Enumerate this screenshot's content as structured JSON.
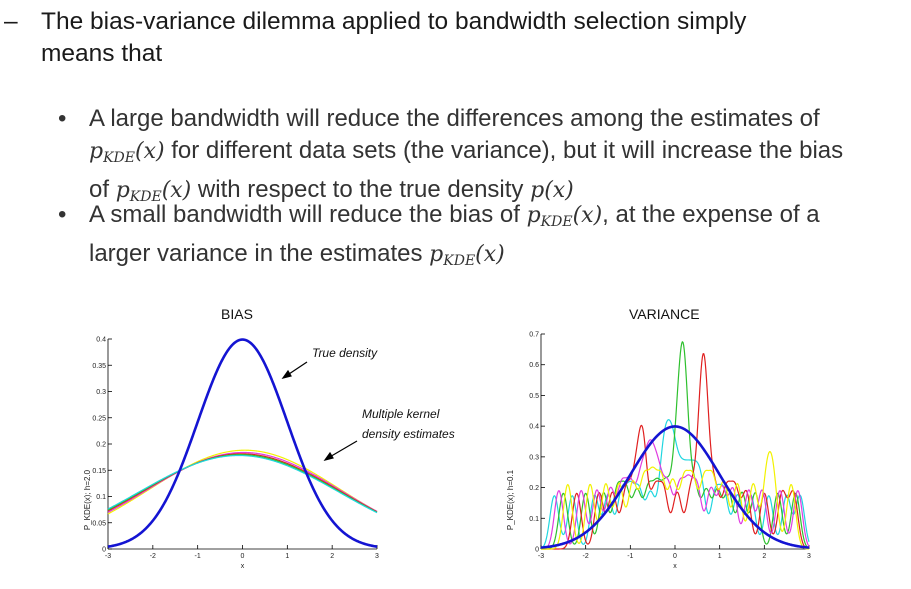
{
  "bullets": {
    "main": {
      "dash": "–",
      "line1": "The bias-variance dilemma applied to bandwidth selection simply",
      "line2": "means that"
    },
    "sub": [
      {
        "bullet": "•",
        "t1": "A large bandwidth will reduce the differences among the estimates of",
        "m1": "p",
        "m1sub": "KDE",
        "m1arg": "(x)",
        "t2": " for different data sets (the variance), but it will increase the bias",
        "t3": "of ",
        "m2": "p",
        "m2sub": "KDE",
        "m2arg": "(x)",
        "t4": " with respect to the true density ",
        "m3": "p(x)"
      },
      {
        "bullet": "•",
        "t1": "A small bandwidth will reduce the bias of ",
        "m1": "p",
        "m1sub": "KDE",
        "m1arg": "(x)",
        "t2": ", at the expense of a",
        "t3": "larger variance in the estimates ",
        "m2": "p",
        "m2sub": "KDE",
        "m2arg": "(x)"
      }
    ]
  },
  "chart_data": [
    {
      "type": "line",
      "title": "BIAS",
      "xlabel": "x",
      "ylabel": "P_KDE(x); h=2.0",
      "xlim": [
        -3,
        3
      ],
      "ylim": [
        0,
        0.4
      ],
      "xticks": [
        "-3",
        "-2",
        "-1",
        "0",
        "1",
        "2",
        "3"
      ],
      "yticks": [
        "0",
        "0.05",
        "0.1",
        "0.15",
        "0.2",
        "0.25",
        "0.3",
        "0.35",
        "0.4"
      ],
      "annotations": [
        "True density",
        "Multiple kernel",
        "density estimates"
      ],
      "series": [
        {
          "name": "true density",
          "color": "#1414d2",
          "model": "normal",
          "mean": 0,
          "sd": 1
        },
        {
          "name": "kde-yellow",
          "color": "#f2f200",
          "model": "normal",
          "mean": 0.05,
          "sd": 2.12
        },
        {
          "name": "kde-magenta",
          "color": "#e03ce0",
          "model": "normal",
          "mean": 0.02,
          "sd": 2.17
        },
        {
          "name": "kde-red",
          "color": "#e02020",
          "model": "normal",
          "mean": -0.02,
          "sd": 2.2
        },
        {
          "name": "kde-green",
          "color": "#2ec02e",
          "model": "normal",
          "mean": -0.05,
          "sd": 2.22
        },
        {
          "name": "kde-cyan",
          "color": "#20d6e0",
          "model": "normal",
          "mean": -0.08,
          "sd": 2.24
        }
      ]
    },
    {
      "type": "line",
      "title": "VARIANCE",
      "xlabel": "x",
      "ylabel": "P_KDE(x); h=0.1",
      "xlim": [
        -3,
        3
      ],
      "ylim": [
        0,
        0.7
      ],
      "xticks": [
        "-3",
        "-2",
        "-1",
        "0",
        "1",
        "2",
        "3"
      ],
      "yticks": [
        "0",
        "0.1",
        "0.2",
        "0.3",
        "0.4",
        "0.5",
        "0.6",
        "0.7"
      ],
      "series": [
        {
          "name": "true density",
          "color": "#1414d2",
          "model": "normal",
          "mean": 0,
          "sd": 1
        },
        {
          "name": "kde-cyan",
          "color": "#20d6e0",
          "model": "kde",
          "bandwidth": 0.1,
          "points": [
            -2.7,
            -2.3,
            -1.8,
            -1.5,
            -1.2,
            -1.0,
            -0.8,
            -0.55,
            -0.3,
            -0.2,
            -0.1,
            0.0,
            0.15,
            0.3,
            0.45,
            0.6,
            0.9,
            1.1,
            1.4,
            1.7,
            2.1,
            2.5,
            2.8
          ]
        },
        {
          "name": "kde-green",
          "color": "#2ec02e",
          "model": "kde",
          "bandwidth": 0.1,
          "points": [
            -2.5,
            -2.0,
            -1.6,
            -1.3,
            -1.1,
            -0.85,
            -0.6,
            -0.4,
            -0.2,
            0.0,
            0.1,
            0.17,
            0.2,
            0.25,
            0.45,
            0.7,
            0.95,
            1.2,
            1.5,
            1.8,
            2.3,
            2.7
          ]
        },
        {
          "name": "kde-red",
          "color": "#e02020",
          "model": "kde",
          "bandwidth": 0.1,
          "points": [
            -2.2,
            -1.7,
            -1.4,
            -1.1,
            -0.9,
            -0.75,
            -0.7,
            -0.45,
            -0.25,
            0.05,
            0.35,
            0.55,
            0.62,
            0.66,
            0.7,
            0.9,
            1.15,
            1.35,
            1.6,
            2.0,
            2.4,
            2.65
          ]
        },
        {
          "name": "kde-magenta",
          "color": "#e03ce0",
          "model": "kde",
          "bandwidth": 0.1,
          "points": [
            -2.6,
            -2.1,
            -1.75,
            -1.45,
            -1.2,
            -1.0,
            -0.78,
            -0.62,
            -0.5,
            -0.35,
            -0.15,
            0.1,
            0.3,
            0.5,
            0.8,
            1.05,
            1.3,
            1.65,
            1.95,
            2.35,
            2.75
          ]
        },
        {
          "name": "kde-yellow",
          "color": "#f2f200",
          "model": "kde",
          "bandwidth": 0.1,
          "points": [
            -2.4,
            -1.9,
            -1.55,
            -1.25,
            -0.95,
            -0.7,
            -0.5,
            -0.3,
            -0.05,
            0.2,
            0.4,
            0.65,
            0.85,
            1.1,
            1.4,
            1.75,
            2.05,
            2.2,
            2.6
          ]
        }
      ]
    }
  ]
}
